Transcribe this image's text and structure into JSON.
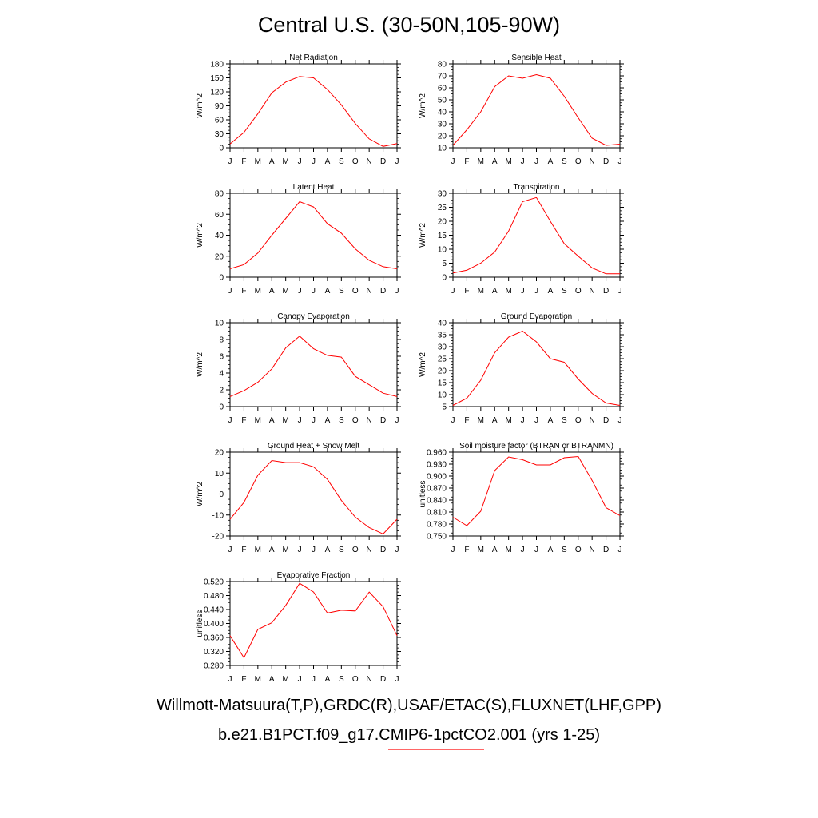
{
  "title": "Central U.S. (30-50N,105-90W)",
  "footer": {
    "obs_sources": "Willmott-Matsuura(T,P),GRDC(R),USAF/ETAC(S),FLUXNET(LHF,GPP)",
    "model_case": "b.e21.B1PCT.f09_g17.CMIP6-1pctCO2.001 (yrs 1-25)"
  },
  "colors": {
    "model_line": "#ff0000",
    "obs_legend": "#6666ff",
    "model_legend": "#ff6666"
  },
  "chart_data": [
    {
      "type": "line",
      "title": "Net Radiation",
      "ylabel": "W/m^2",
      "x": [
        "J",
        "F",
        "M",
        "A",
        "M",
        "J",
        "J",
        "A",
        "S",
        "O",
        "N",
        "D",
        "J"
      ],
      "ylim": [
        0,
        180
      ],
      "yticks": [
        "0",
        "30",
        "60",
        "90",
        "120",
        "150",
        "180"
      ],
      "series": [
        {
          "values": [
            8,
            33,
            73,
            118,
            141,
            153,
            150,
            125,
            92,
            52,
            19,
            3,
            9
          ]
        }
      ]
    },
    {
      "type": "line",
      "title": "Sensible Heat",
      "ylabel": "W/m^2",
      "x": [
        "J",
        "F",
        "M",
        "A",
        "M",
        "J",
        "J",
        "A",
        "S",
        "O",
        "N",
        "D",
        "J"
      ],
      "ylim": [
        10,
        80
      ],
      "yticks": [
        "10",
        "20",
        "30",
        "40",
        "50",
        "60",
        "70",
        "80"
      ],
      "series": [
        {
          "values": [
            12,
            25,
            40,
            61,
            70,
            68,
            71,
            68,
            53,
            35,
            18,
            12,
            13
          ]
        }
      ]
    },
    {
      "type": "line",
      "title": "Latent Heat",
      "ylabel": "W/m^2",
      "x": [
        "J",
        "F",
        "M",
        "A",
        "M",
        "J",
        "J",
        "A",
        "S",
        "O",
        "N",
        "D",
        "J"
      ],
      "ylim": [
        0,
        80
      ],
      "yticks": [
        "0",
        "20",
        "40",
        "60",
        "80"
      ],
      "series": [
        {
          "values": [
            8,
            12,
            23,
            40,
            56,
            72,
            67,
            51,
            42,
            27,
            16,
            10,
            8
          ]
        }
      ]
    },
    {
      "type": "line",
      "title": "Transpiration",
      "ylabel": "W/m^2",
      "x": [
        "J",
        "F",
        "M",
        "A",
        "M",
        "J",
        "J",
        "A",
        "S",
        "O",
        "N",
        "D",
        "J"
      ],
      "ylim": [
        0,
        30
      ],
      "yticks": [
        "0",
        "5",
        "10",
        "15",
        "20",
        "25",
        "30"
      ],
      "series": [
        {
          "values": [
            1.5,
            2.5,
            5,
            9,
            16.5,
            27,
            28.5,
            20,
            12,
            7.5,
            3.3,
            1.2,
            1.2
          ]
        }
      ]
    },
    {
      "type": "line",
      "title": "Canopy Evaporation",
      "ylabel": "W/m^2",
      "x": [
        "J",
        "F",
        "M",
        "A",
        "M",
        "J",
        "J",
        "A",
        "S",
        "O",
        "N",
        "D",
        "J"
      ],
      "ylim": [
        0,
        10
      ],
      "yticks": [
        "0",
        "2",
        "4",
        "6",
        "8",
        "10"
      ],
      "series": [
        {
          "values": [
            1.2,
            1.9,
            2.9,
            4.5,
            7,
            8.4,
            6.9,
            6.1,
            5.9,
            3.6,
            2.6,
            1.6,
            1.2
          ]
        }
      ]
    },
    {
      "type": "line",
      "title": "Ground Evaporation",
      "ylabel": "W/m^2",
      "x": [
        "J",
        "F",
        "M",
        "A",
        "M",
        "J",
        "J",
        "A",
        "S",
        "O",
        "N",
        "D",
        "J"
      ],
      "ylim": [
        5,
        40
      ],
      "yticks": [
        "5",
        "10",
        "15",
        "20",
        "25",
        "30",
        "35",
        "40"
      ],
      "series": [
        {
          "values": [
            5.5,
            8.5,
            16,
            27.5,
            34,
            36.5,
            32,
            25,
            23.5,
            16.5,
            10.5,
            6.5,
            5.5
          ]
        }
      ]
    },
    {
      "type": "line",
      "title": "Ground Heat + Snow Melt",
      "ylabel": "W/m^2",
      "x": [
        "J",
        "F",
        "M",
        "A",
        "M",
        "J",
        "J",
        "A",
        "S",
        "O",
        "N",
        "D",
        "J"
      ],
      "ylim": [
        -20,
        20
      ],
      "yticks": [
        "-20",
        "-10",
        "0",
        "10",
        "20"
      ],
      "series": [
        {
          "values": [
            -12,
            -4,
            9,
            16,
            15,
            15,
            13,
            7,
            -3,
            -11,
            -16,
            -19,
            -12
          ]
        }
      ]
    },
    {
      "type": "line",
      "title": "Soil moisture factor (BTRAN or BTRANMN)",
      "ylabel": "unitless",
      "x": [
        "J",
        "F",
        "M",
        "A",
        "M",
        "J",
        "J",
        "A",
        "S",
        "O",
        "N",
        "D",
        "J"
      ],
      "ylim": [
        0.75,
        0.96
      ],
      "yticks": [
        "0.750",
        "0.780",
        "0.810",
        "0.840",
        "0.870",
        "0.900",
        "0.930",
        "0.960"
      ],
      "series": [
        {
          "values": [
            0.797,
            0.776,
            0.812,
            0.914,
            0.948,
            0.941,
            0.928,
            0.928,
            0.946,
            0.949,
            0.889,
            0.821,
            0.801
          ]
        }
      ]
    },
    {
      "type": "line",
      "title": "Evaporative Fraction",
      "ylabel": "unitless",
      "x": [
        "J",
        "F",
        "M",
        "A",
        "M",
        "J",
        "J",
        "A",
        "S",
        "O",
        "N",
        "D",
        "J"
      ],
      "ylim": [
        0.28,
        0.52
      ],
      "yticks": [
        "0.280",
        "0.320",
        "0.360",
        "0.400",
        "0.440",
        "0.480",
        "0.520"
      ],
      "series": [
        {
          "values": [
            0.365,
            0.302,
            0.383,
            0.402,
            0.452,
            0.515,
            0.49,
            0.43,
            0.438,
            0.436,
            0.49,
            0.448,
            0.365
          ]
        }
      ]
    }
  ]
}
